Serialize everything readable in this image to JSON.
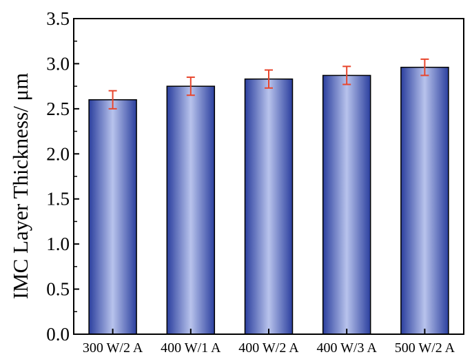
{
  "chart_data": {
    "type": "bar",
    "title": "",
    "xlabel": "",
    "ylabel": "IMC Layer Thickness/ μm",
    "categories": [
      "300 W/2 A",
      "400 W/1 A",
      "400  W/2 A",
      "400 W/3 A",
      "500  W/2 A"
    ],
    "values": [
      2.6,
      2.75,
      2.83,
      2.87,
      2.96
    ],
    "error": [
      0.1,
      0.1,
      0.1,
      0.1,
      0.09
    ],
    "ylim": [
      0,
      3.5
    ],
    "yticks": [
      "0.0",
      "0.5",
      "1.0",
      "1.5",
      "2.0",
      "2.5",
      "3.0",
      "3.5"
    ],
    "grid": false,
    "legend": "none",
    "colors": {
      "bar_dark": "#2b3f9e",
      "bar_light": "#b8c3ec",
      "error_bar": "#e8452c",
      "axis": "#000000"
    }
  }
}
